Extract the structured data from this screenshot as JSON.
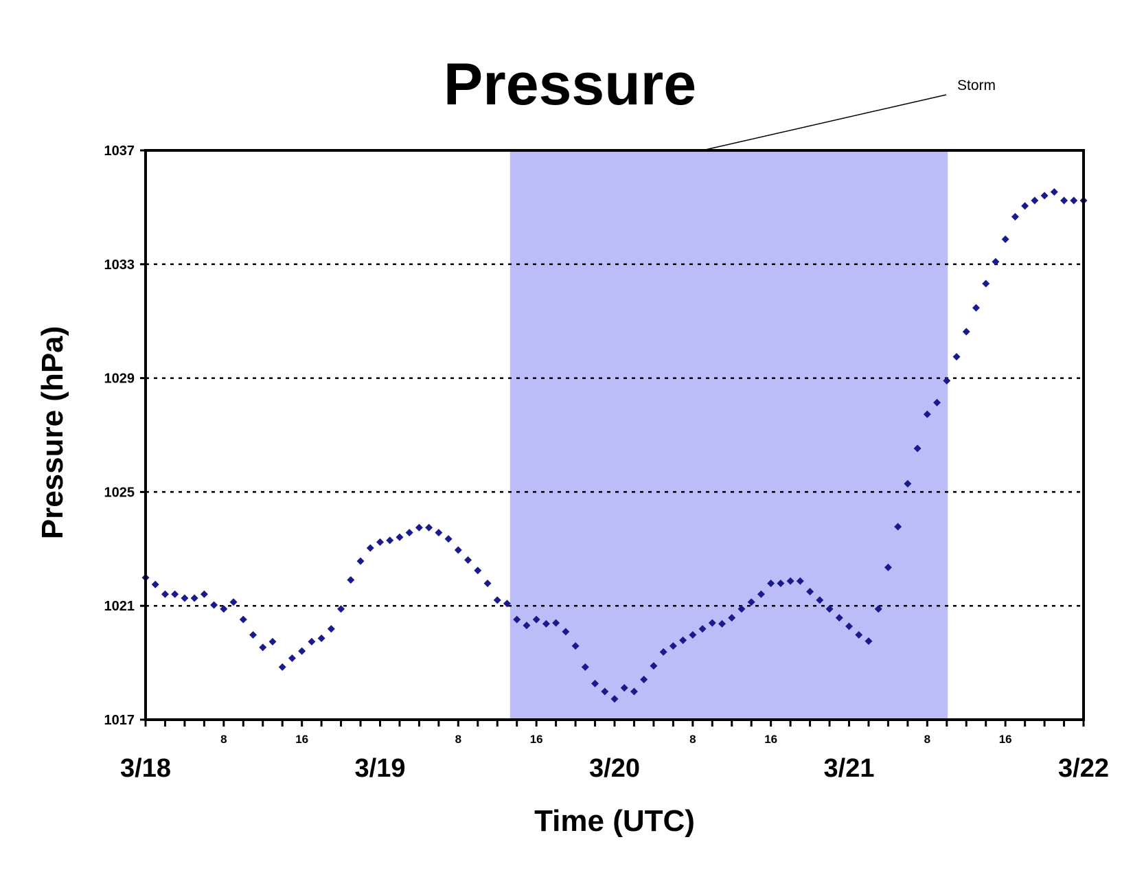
{
  "chart_data": {
    "type": "scatter",
    "title": "Pressure",
    "xlabel": "Time (UTC)",
    "ylabel": "Pressure (hPa)",
    "ylim": [
      1017,
      1037
    ],
    "y_ticks": [
      "1017",
      "1021",
      "1025",
      "1029",
      "1033",
      "1037"
    ],
    "xlim_hours": [
      0,
      96
    ],
    "x_tick_step_hours": 2,
    "hour_labels": [
      {
        "hour": 8,
        "label": "8"
      },
      {
        "hour": 16,
        "label": "16"
      },
      {
        "hour": 32,
        "label": "8"
      },
      {
        "hour": 40,
        "label": "16"
      },
      {
        "hour": 56,
        "label": "8"
      },
      {
        "hour": 64,
        "label": "16"
      },
      {
        "hour": 80,
        "label": "8"
      },
      {
        "hour": 88,
        "label": "16"
      }
    ],
    "day_labels": [
      {
        "hour": 0,
        "label": "3/18"
      },
      {
        "hour": 24,
        "label": "3/19"
      },
      {
        "hour": 48,
        "label": "3/20"
      },
      {
        "hour": 72,
        "label": "3/21"
      },
      {
        "hour": 96,
        "label": "3/22"
      }
    ],
    "grid": {
      "y_dotted": true,
      "levels": [
        1021,
        1025,
        1029,
        1033
      ]
    },
    "shaded_region": {
      "label": "Storm",
      "x_start_hour": 37.3,
      "x_end_hour": 82.1,
      "color": "#bcbcf8"
    },
    "annotation": {
      "text": "Storm",
      "points_to_hour": 57.3
    },
    "marker_color": "#1a1a8c",
    "series": [
      {
        "x_hours": [
          0,
          1,
          2,
          3,
          4,
          5,
          6,
          7,
          8,
          9,
          10,
          11,
          12,
          13,
          14,
          15,
          16,
          17,
          18,
          19,
          20,
          21,
          22,
          23,
          24,
          25,
          26,
          27,
          28,
          29,
          30,
          31,
          32,
          33,
          34,
          35,
          36,
          37,
          38,
          39,
          40,
          41,
          42,
          43,
          44,
          45,
          46,
          47,
          48,
          49,
          50,
          51,
          52,
          53,
          54,
          55,
          56,
          57,
          58,
          59,
          60,
          61,
          62,
          63,
          64,
          65,
          66,
          67,
          68,
          69,
          70,
          71,
          72,
          73,
          74,
          75,
          76,
          77,
          78,
          79,
          80,
          81,
          82,
          83,
          84,
          85,
          86,
          87,
          88,
          89,
          90,
          91,
          92,
          93,
          94,
          95,
          96
        ],
        "values": [
          1021.99,
          1021.75,
          1021.41,
          1021.41,
          1021.27,
          1021.27,
          1021.41,
          1021.03,
          1020.89,
          1021.13,
          1020.52,
          1019.98,
          1019.54,
          1019.74,
          1018.85,
          1019.16,
          1019.41,
          1019.74,
          1019.86,
          1020.19,
          1020.89,
          1021.91,
          1022.57,
          1023.03,
          1023.24,
          1023.3,
          1023.41,
          1023.57,
          1023.75,
          1023.75,
          1023.57,
          1023.35,
          1022.96,
          1022.61,
          1022.24,
          1021.79,
          1021.2,
          1021.08,
          1020.52,
          1020.31,
          1020.52,
          1020.37,
          1020.4,
          1020.09,
          1019.59,
          1018.85,
          1018.27,
          1017.99,
          1017.73,
          1018.12,
          1017.99,
          1018.41,
          1018.89,
          1019.38,
          1019.59,
          1019.79,
          1019.98,
          1020.19,
          1020.4,
          1020.37,
          1020.58,
          1020.89,
          1021.13,
          1021.41,
          1021.79,
          1021.79,
          1021.87,
          1021.87,
          1021.5,
          1021.2,
          1020.89,
          1020.58,
          1020.28,
          1019.98,
          1019.76,
          1020.89,
          1022.35,
          1023.78,
          1025.29,
          1026.53,
          1027.73,
          1028.14,
          1028.91,
          1029.75,
          1030.63,
          1031.47,
          1032.32,
          1033.09,
          1033.88,
          1034.67,
          1035.05,
          1035.24,
          1035.41,
          1035.54,
          1035.24,
          1035.24,
          1035.24
        ]
      }
    ]
  }
}
